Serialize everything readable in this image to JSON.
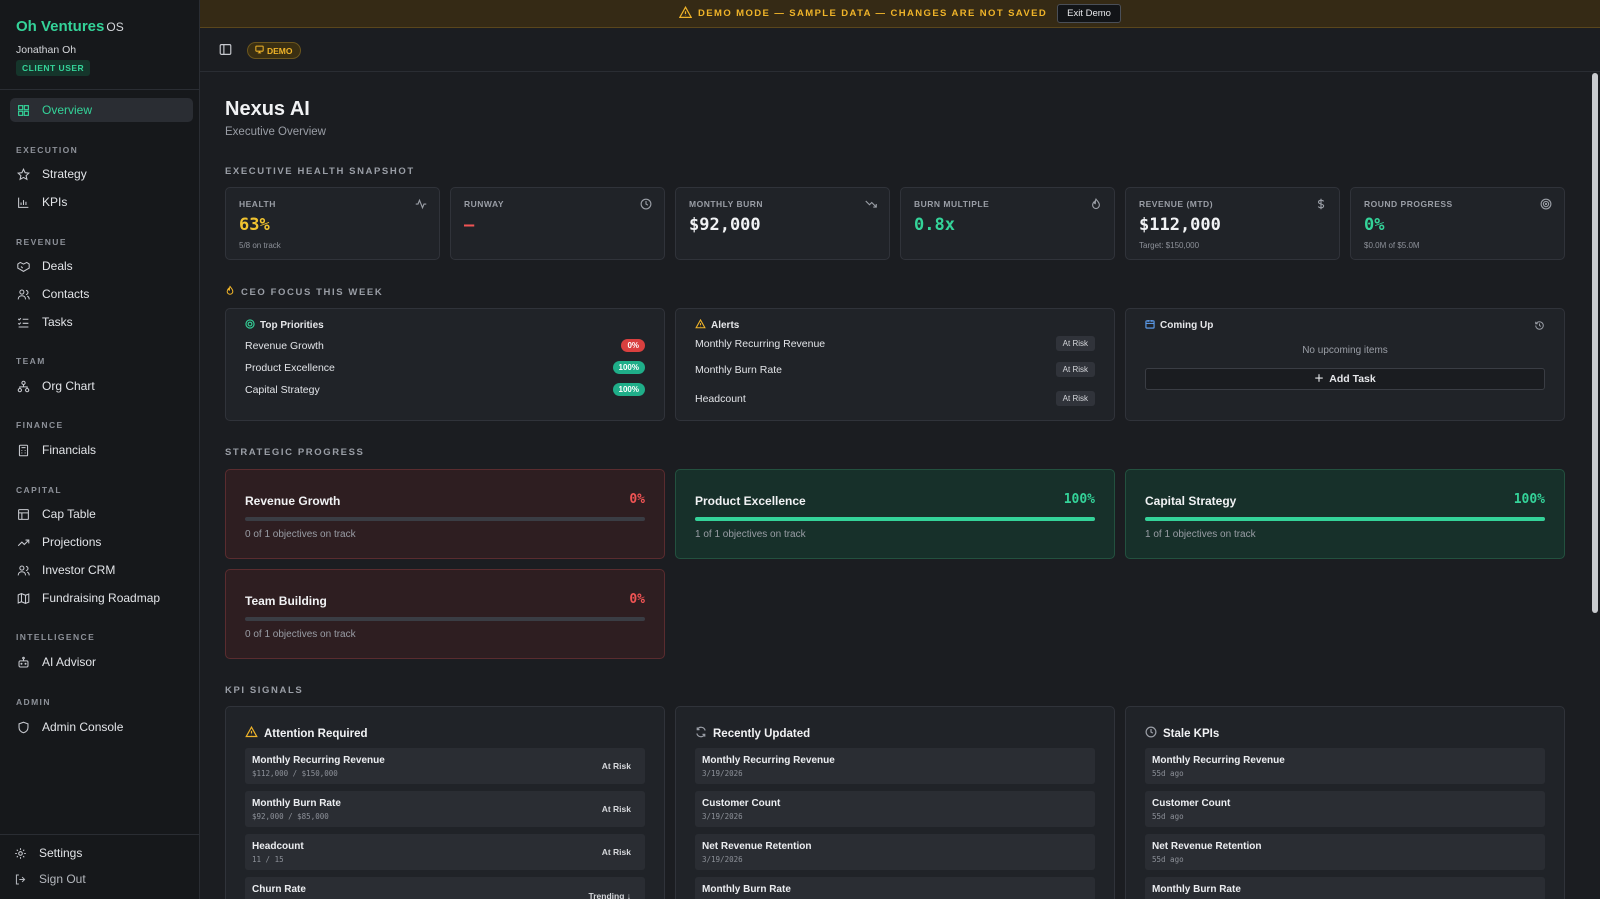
{
  "sidebar": {
    "brand": "Oh Ventures",
    "brand_suffix": "OS",
    "user": "Jonathan Oh",
    "role": "CLIENT USER",
    "overview": "Overview",
    "sections": {
      "execution": "EXECUTION",
      "revenue": "REVENUE",
      "team": "TEAM",
      "finance": "FINANCE",
      "capital": "CAPITAL",
      "intelligence": "INTELLIGENCE",
      "admin": "ADMIN"
    },
    "items": {
      "strategy": "Strategy",
      "kpis": "KPIs",
      "deals": "Deals",
      "contacts": "Contacts",
      "tasks": "Tasks",
      "org_chart": "Org Chart",
      "financials": "Financials",
      "cap_table": "Cap Table",
      "projections": "Projections",
      "investor_crm": "Investor CRM",
      "fundraising": "Fundraising Roadmap",
      "ai_advisor": "AI Advisor",
      "admin_console": "Admin Console",
      "settings": "Settings",
      "sign_out": "Sign Out"
    }
  },
  "banner": {
    "text": "DEMO MODE — SAMPLE DATA — CHANGES ARE NOT SAVED",
    "exit": "Exit Demo"
  },
  "topbar": {
    "demo": "DEMO"
  },
  "page": {
    "title": "Nexus AI",
    "subtitle": "Executive Overview"
  },
  "sections": {
    "health": "EXECUTIVE HEALTH SNAPSHOT",
    "focus": "CEO FOCUS THIS WEEK",
    "progress": "STRATEGIC PROGRESS",
    "signals": "KPI SIGNALS"
  },
  "metrics": [
    {
      "label": "HEALTH",
      "value": "63%",
      "sub": "5/8 on track",
      "color": "#f0c330",
      "icon": "activity-icon"
    },
    {
      "label": "RUNWAY",
      "value": "—",
      "sub": "",
      "color": "#f05454",
      "icon": "clock-icon"
    },
    {
      "label": "MONTHLY BURN",
      "value": "$92,000",
      "sub": "",
      "color": "#f1f2f4",
      "icon": "trending-down-icon"
    },
    {
      "label": "BURN MULTIPLE",
      "value": "0.8x",
      "sub": "",
      "color": "#34d399",
      "icon": "flame-icon"
    },
    {
      "label": "REVENUE (MTD)",
      "value": "$112,000",
      "sub": "Target: $150,000",
      "color": "#f1f2f4",
      "icon": "dollar-icon"
    },
    {
      "label": "ROUND PROGRESS",
      "value": "0%",
      "sub": "$0.0M of $5.0M",
      "color": "#34d399",
      "icon": "target-icon"
    }
  ],
  "focus": {
    "priorities_title": "Top Priorities",
    "priorities": [
      {
        "name": "Revenue Growth",
        "pct": "0%"
      },
      {
        "name": "Product Excellence",
        "pct": "100%"
      },
      {
        "name": "Capital Strategy",
        "pct": "100%"
      }
    ],
    "alerts_title": "Alerts",
    "alerts": [
      {
        "name": "Monthly Recurring Revenue",
        "status": "At Risk"
      },
      {
        "name": "Monthly Burn Rate",
        "status": "At Risk"
      },
      {
        "name": "Headcount",
        "status": "At Risk"
      }
    ],
    "upcoming_title": "Coming Up",
    "upcoming_empty": "No upcoming items",
    "add_task": "Add Task"
  },
  "progress": [
    {
      "name": "Revenue Growth",
      "pct": "0%",
      "fill": 0,
      "sub": "0 of 1 objectives on track"
    },
    {
      "name": "Product Excellence",
      "pct": "100%",
      "fill": 1,
      "sub": "1 of 1 objectives on track"
    },
    {
      "name": "Capital Strategy",
      "pct": "100%",
      "fill": 1,
      "sub": "1 of 1 objectives on track"
    },
    {
      "name": "Team Building",
      "pct": "0%",
      "fill": 0,
      "sub": "0 of 1 objectives on track"
    }
  ],
  "signals": {
    "attention_title": "Attention Required",
    "attention": [
      {
        "name": "Monthly Recurring Revenue",
        "detail": "$112,000 / $150,000",
        "status": "At Risk"
      },
      {
        "name": "Monthly Burn Rate",
        "detail": "$92,000 / $85,000",
        "status": "At Risk"
      },
      {
        "name": "Headcount",
        "detail": "11 / 15",
        "status": "At Risk"
      },
      {
        "name": "Churn Rate",
        "detail": "",
        "status": "Trending ↓"
      }
    ],
    "recent_title": "Recently Updated",
    "recent": [
      {
        "name": "Monthly Recurring Revenue",
        "detail": "3/19/2026"
      },
      {
        "name": "Customer Count",
        "detail": "3/19/2026"
      },
      {
        "name": "Net Revenue Retention",
        "detail": "3/19/2026"
      },
      {
        "name": "Monthly Burn Rate",
        "detail": ""
      }
    ],
    "stale_title": "Stale KPIs",
    "stale": [
      {
        "name": "Monthly Recurring Revenue",
        "detail": "55d ago"
      },
      {
        "name": "Customer Count",
        "detail": "55d ago"
      },
      {
        "name": "Net Revenue Retention",
        "detail": "55d ago"
      },
      {
        "name": "Monthly Burn Rate",
        "detail": ""
      }
    ]
  }
}
